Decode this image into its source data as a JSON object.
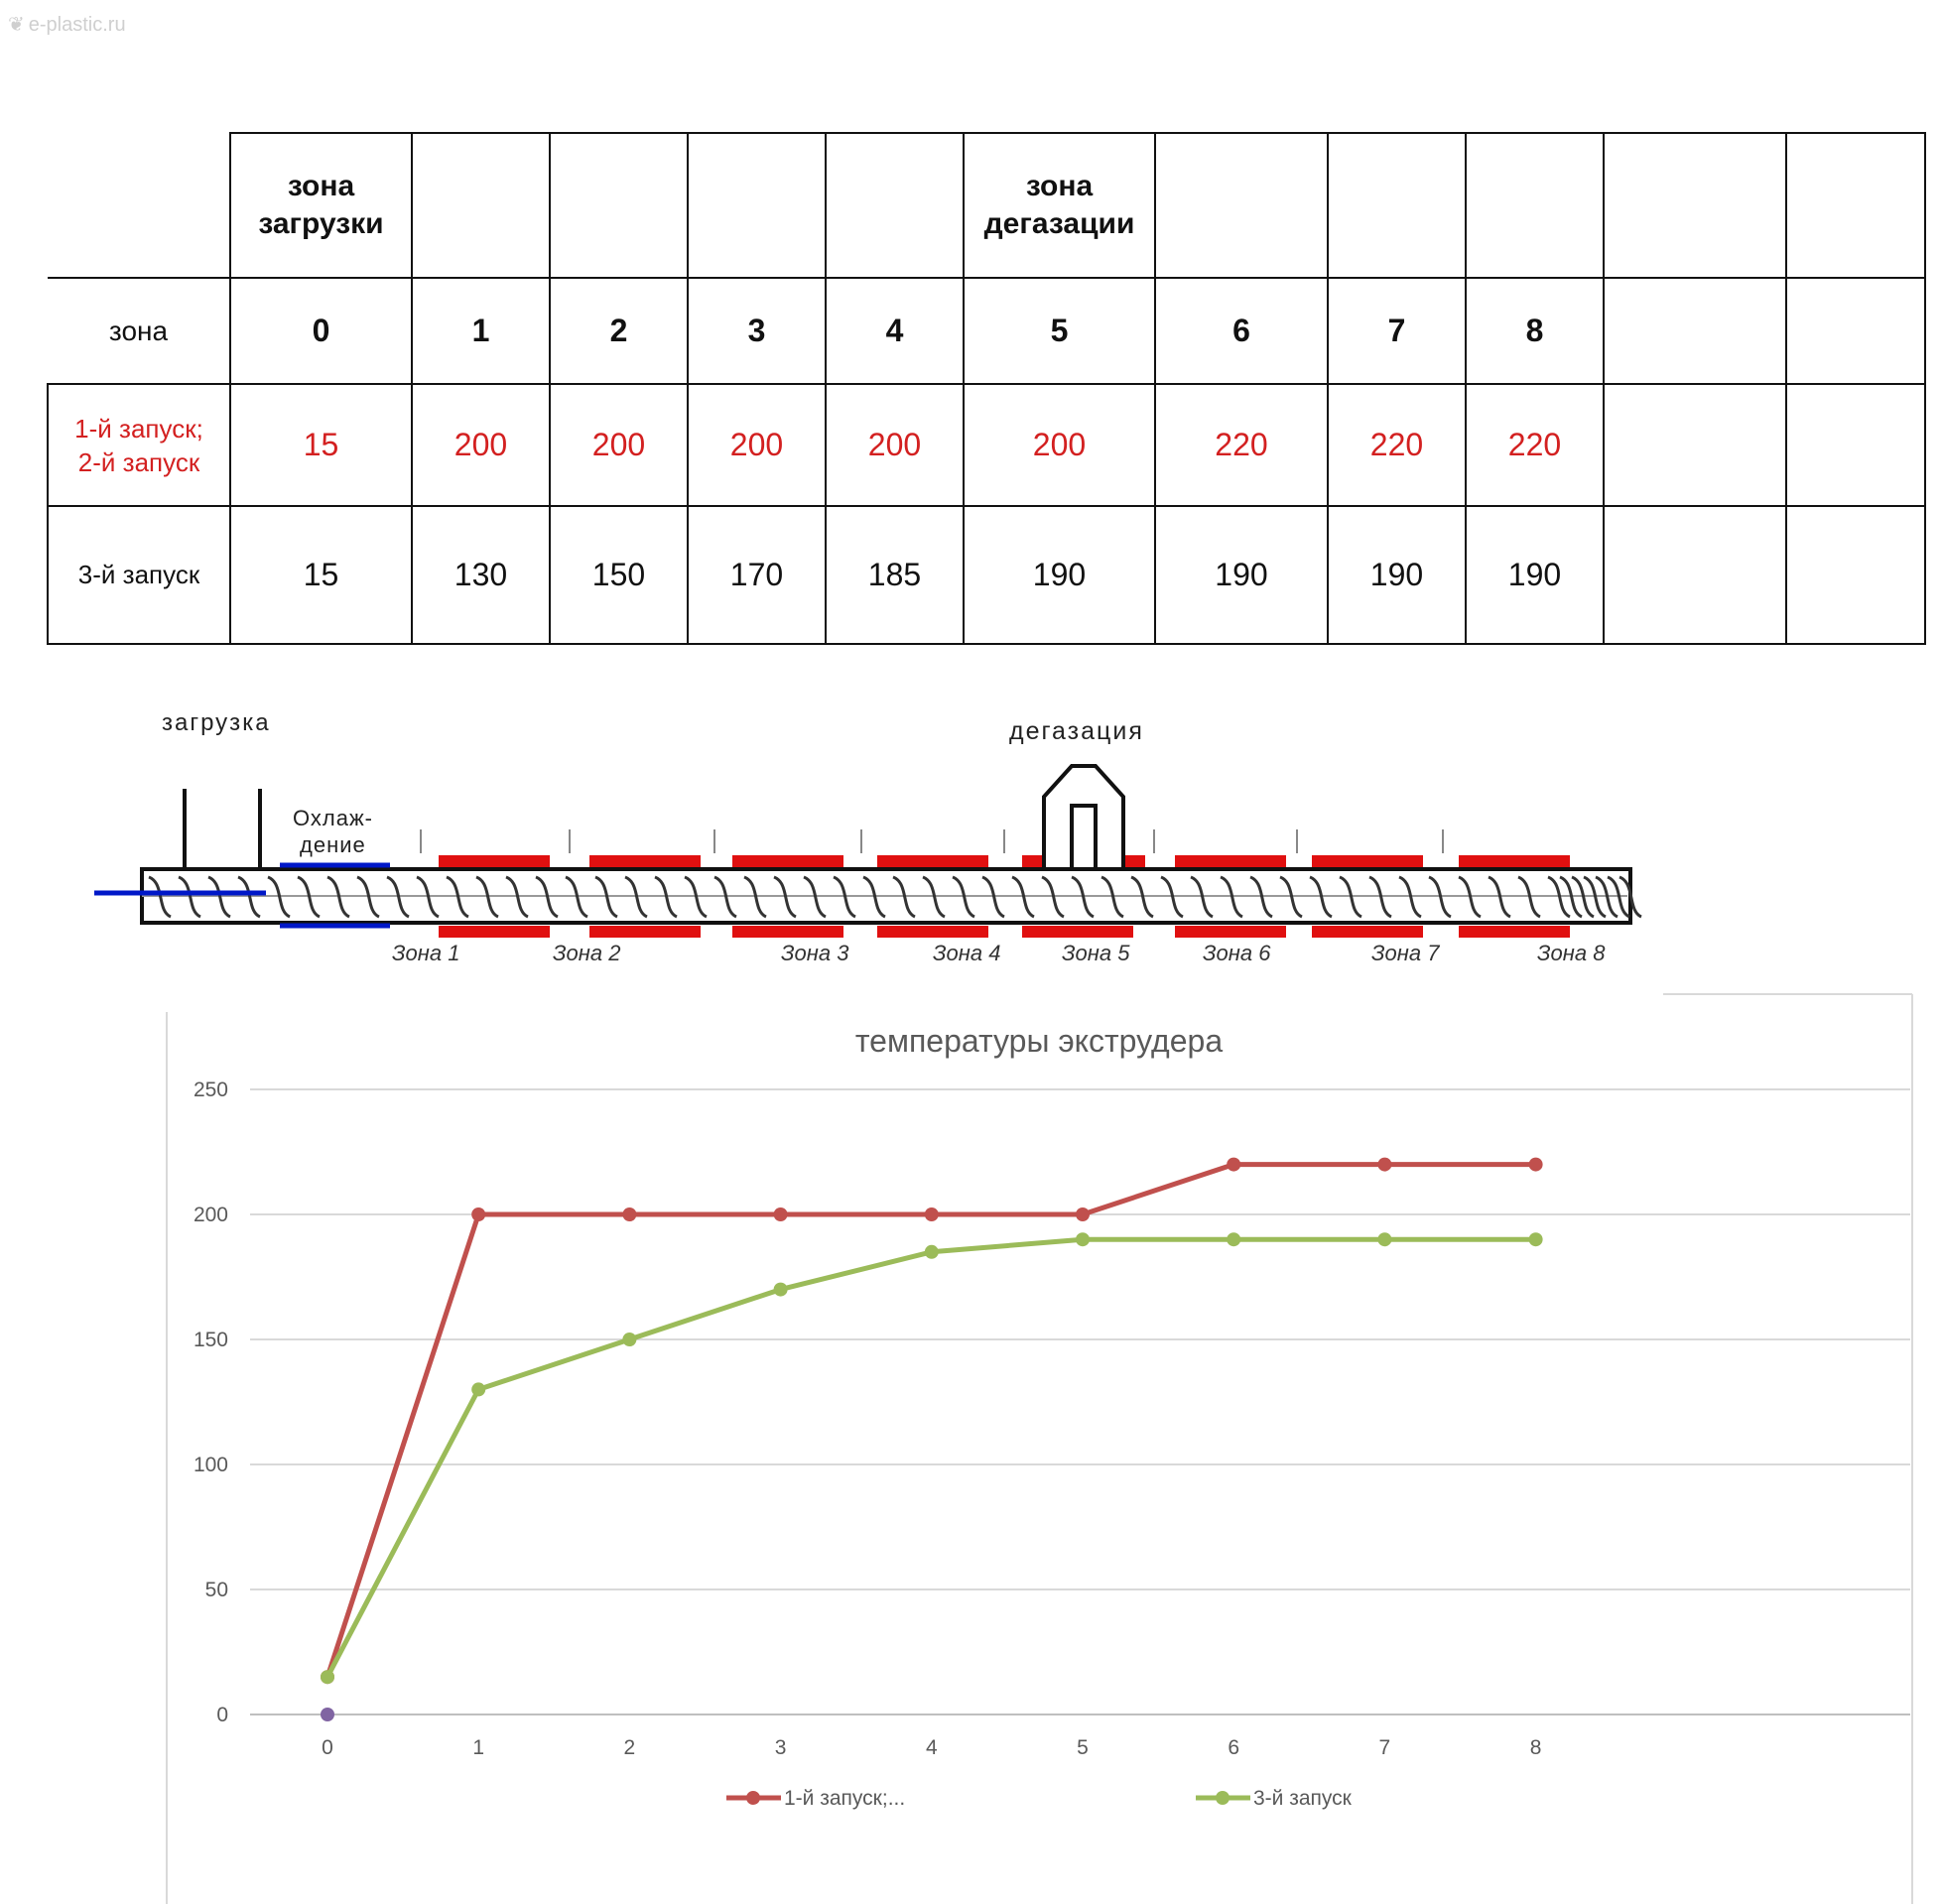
{
  "watermark": {
    "icon": "leaf-logo-icon",
    "text": "e-plastic.ru"
  },
  "table": {
    "group_headers": [
      {
        "col": 0,
        "text": "зона загрузки"
      },
      {
        "col": 5,
        "text": "зона дегазации"
      }
    ],
    "row_zone_label": "зона",
    "zones": [
      "0",
      "1",
      "2",
      "3",
      "4",
      "5",
      "6",
      "7",
      "8",
      "",
      ""
    ],
    "run12_label_line1": "1-й запуск;",
    "run12_label_line2": "2-й запуск",
    "run12_values": [
      "15",
      "200",
      "200",
      "200",
      "200",
      "200",
      "220",
      "220",
      "220",
      "",
      ""
    ],
    "run3_label": "3-й запуск",
    "run3_values": [
      "15",
      "130",
      "150",
      "170",
      "185",
      "190",
      "190",
      "190",
      "190",
      "",
      ""
    ]
  },
  "diagram": {
    "loading_label": "загрузка",
    "degassing_label": "дегазация",
    "cooling_line1": "Охлаж-",
    "cooling_line2": "дение",
    "zone_labels": [
      "Зона 1",
      "Зона 2",
      "Зона 3",
      "Зона 4",
      "Зона 5",
      "Зона 6",
      "Зона 7",
      "Зона 8"
    ],
    "heater_color": "#e01010",
    "cooling_color": "#0018c8"
  },
  "chart_data": {
    "type": "line",
    "title": "температуры экструдера",
    "x": [
      0,
      1,
      2,
      3,
      4,
      5,
      6,
      7,
      8
    ],
    "xticks": [
      "0",
      "1",
      "2",
      "3",
      "4",
      "5",
      "6",
      "7",
      "8"
    ],
    "yticks": [
      "0",
      "50",
      "100",
      "150",
      "200",
      "250"
    ],
    "ylim": [
      0,
      250
    ],
    "grid": true,
    "legend_position": "bottom",
    "series": [
      {
        "name": "1-й запуск;...",
        "color": "#c0504d",
        "values": [
          15,
          200,
          200,
          200,
          200,
          200,
          220,
          220,
          220
        ]
      },
      {
        "name": "3-й запуск",
        "color": "#9bbb59",
        "values": [
          15,
          130,
          150,
          170,
          185,
          190,
          190,
          190,
          190
        ]
      }
    ],
    "extra_point": {
      "x": 0,
      "y": 0,
      "color": "#8064a2"
    }
  }
}
